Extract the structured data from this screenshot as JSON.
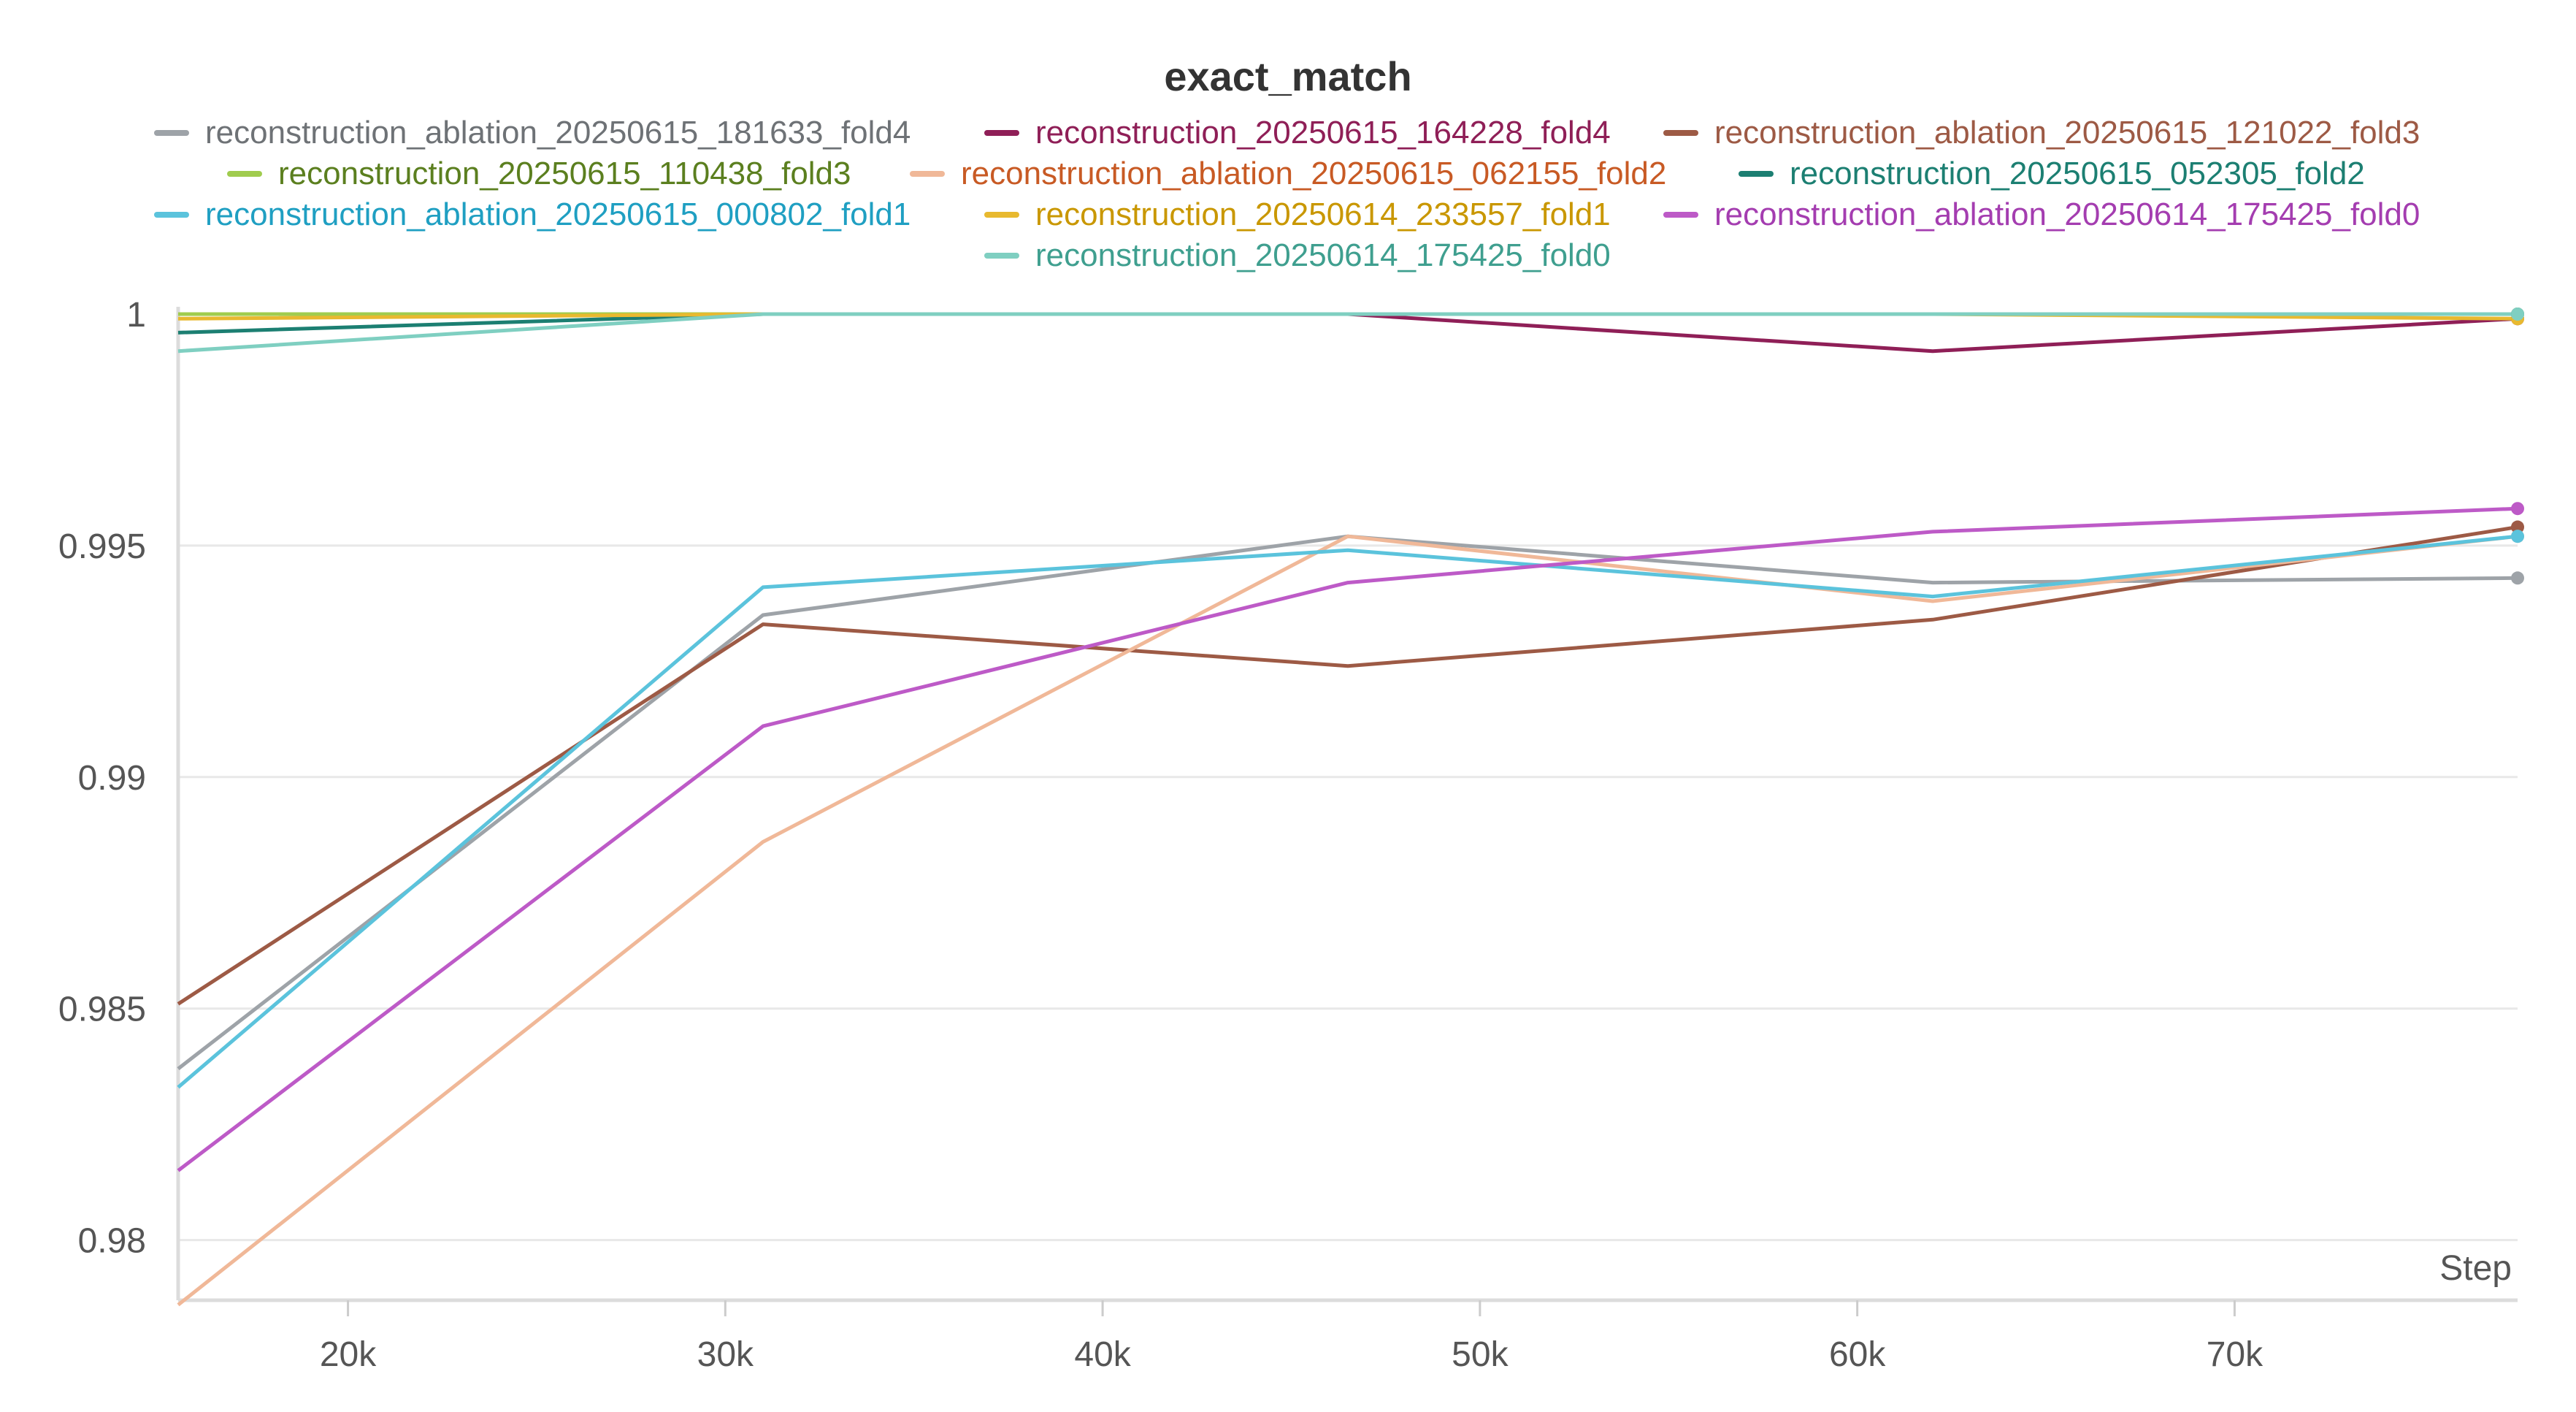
{
  "chart_data": {
    "type": "line",
    "title": "exact_match",
    "xlabel": "Step",
    "ylabel": "",
    "xlim": [
      15500,
      77500
    ],
    "ylim": [
      0.9787,
      1.0
    ],
    "x_ticks": [
      20000,
      30000,
      40000,
      50000,
      60000,
      70000
    ],
    "x_tick_labels": [
      "20k",
      "30k",
      "40k",
      "50k",
      "60k",
      "70k"
    ],
    "y_ticks": [
      0.98,
      0.985,
      0.99,
      0.995,
      1.0
    ],
    "y_tick_labels": [
      "0.98",
      "0.985",
      "0.99",
      "0.995",
      "1"
    ],
    "grid": true,
    "legend_position": "top-center",
    "series": [
      {
        "name": "reconstruction_ablation_20250615_181633_fold4",
        "color": "#9ea3a8",
        "text_color": "#6e7276",
        "x": [
          15500,
          31000,
          46500,
          62000,
          77500
        ],
        "y": [
          0.9837,
          0.9935,
          0.9952,
          0.9942,
          0.9943
        ]
      },
      {
        "name": "reconstruction_20250615_164228_fold4",
        "color": "#8f1f57",
        "text_color": "#8f1f57",
        "x": [
          15500,
          31000,
          46500,
          62000,
          77500
        ],
        "y": [
          1.0,
          1.0,
          1.0,
          0.9992,
          0.9999
        ]
      },
      {
        "name": "reconstruction_ablation_20250615_121022_fold3",
        "color": "#9d5a45",
        "text_color": "#9d5a45",
        "x": [
          15500,
          31000,
          46500,
          62000,
          77500
        ],
        "y": [
          0.9851,
          0.9933,
          0.9924,
          0.9934,
          0.9954
        ]
      },
      {
        "name": "reconstruction_20250615_110438_fold3",
        "color": "#a0cc4e",
        "text_color": "#5b7f1f",
        "x": [
          15500,
          31000,
          46500,
          62000,
          77500
        ],
        "y": [
          1.0,
          1.0,
          1.0,
          1.0,
          1.0
        ]
      },
      {
        "name": "reconstruction_ablation_20250615_062155_fold2",
        "color": "#f0b898",
        "text_color": "#c85a24",
        "x": [
          15500,
          31000,
          46500,
          62000,
          77500
        ],
        "y": [
          0.9786,
          0.9886,
          0.9952,
          0.9938,
          0.9952
        ]
      },
      {
        "name": "reconstruction_20250615_052305_fold2",
        "color": "#1c7f72",
        "text_color": "#1c7f72",
        "x": [
          15500,
          31000,
          46500,
          62000,
          77500
        ],
        "y": [
          0.9996,
          1.0,
          1.0,
          1.0,
          1.0
        ]
      },
      {
        "name": "reconstruction_ablation_20250615_000802_fold1",
        "color": "#5bc3dc",
        "text_color": "#1f9fc2",
        "x": [
          15500,
          31000,
          46500,
          62000,
          77500
        ],
        "y": [
          0.9833,
          0.9941,
          0.9949,
          0.9939,
          0.9952
        ]
      },
      {
        "name": "reconstruction_20250614_233557_fold1",
        "color": "#e8b92f",
        "text_color": "#c99700",
        "x": [
          15500,
          31000,
          46500,
          62000,
          77500
        ],
        "y": [
          0.9999,
          1.0,
          1.0,
          1.0,
          0.9999
        ]
      },
      {
        "name": "reconstruction_ablation_20250614_175425_fold0",
        "color": "#bd5ac7",
        "text_color": "#a43db0",
        "x": [
          15500,
          31000,
          46500,
          62000,
          77500
        ],
        "y": [
          0.9815,
          0.9911,
          0.9942,
          0.9953,
          0.9958
        ]
      },
      {
        "name": "reconstruction_20250614_175425_fold0",
        "color": "#7fcfc1",
        "text_color": "#3f9f8f",
        "x": [
          15500,
          31000,
          46500,
          62000,
          77500
        ],
        "y": [
          0.9992,
          1.0,
          1.0,
          1.0,
          1.0
        ]
      }
    ]
  }
}
